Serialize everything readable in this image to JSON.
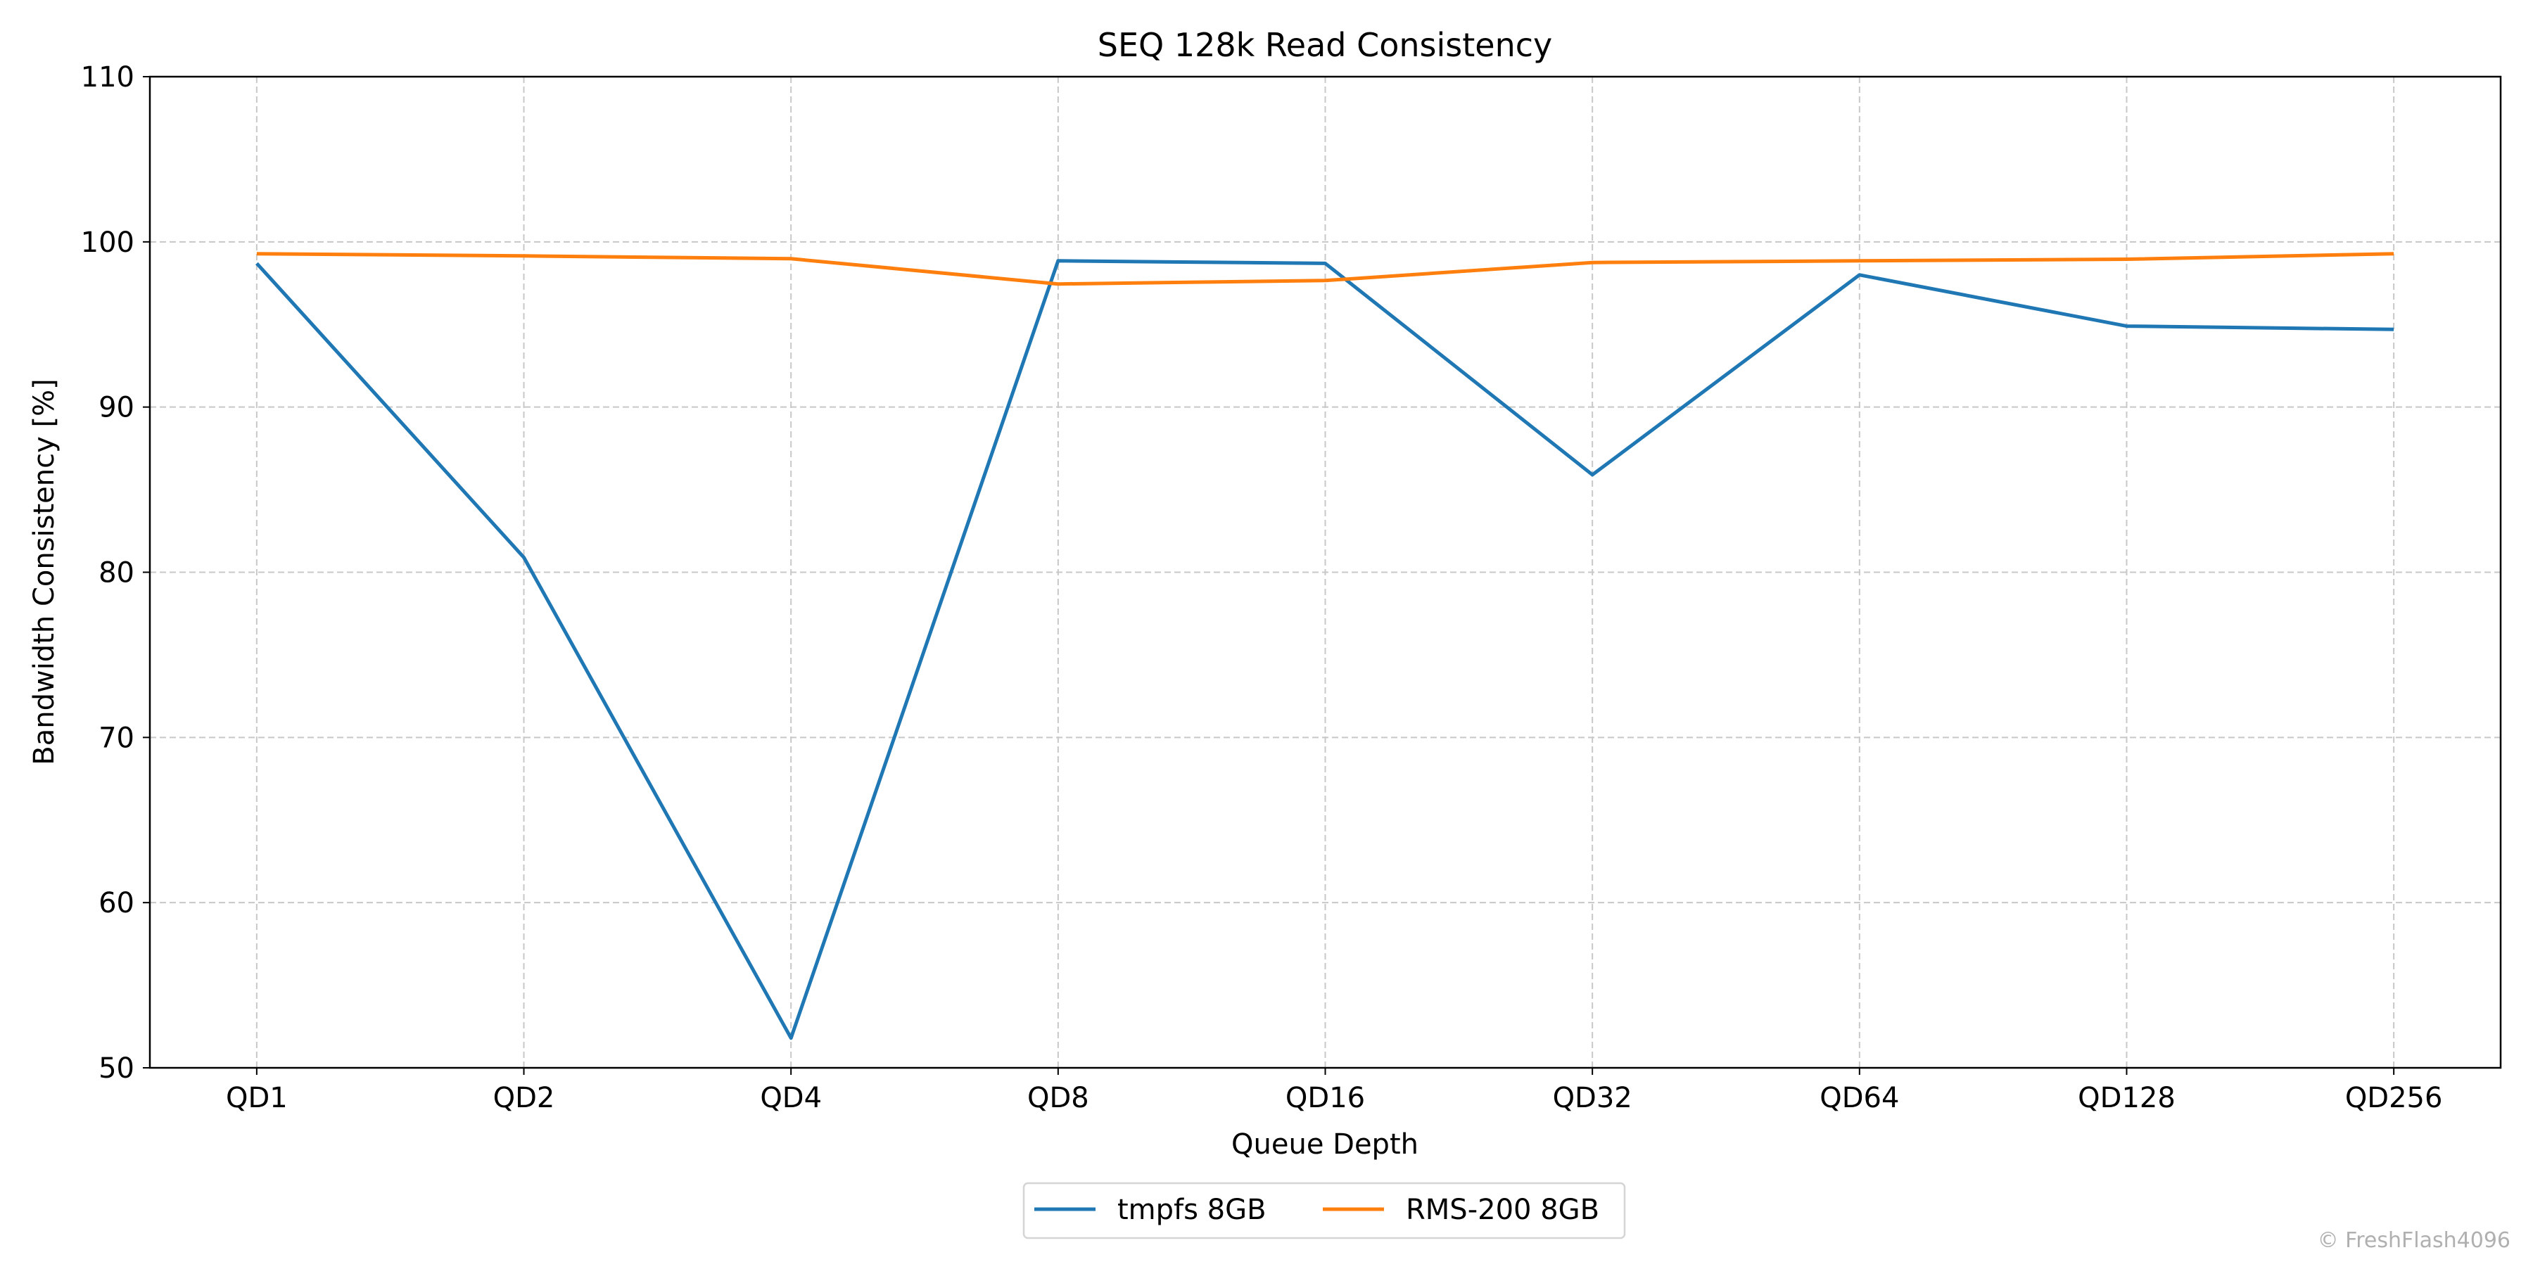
{
  "chart_data": {
    "type": "line",
    "title": "SEQ 128k Read Consistency",
    "xlabel": "Queue Depth",
    "ylabel": "Bandwidth Consistency [%]",
    "categories": [
      "QD1",
      "QD2",
      "QD4",
      "QD8",
      "QD16",
      "QD32",
      "QD64",
      "QD128",
      "QD256"
    ],
    "ylim": [
      50,
      110
    ],
    "yticks": [
      50,
      60,
      70,
      80,
      90,
      100,
      110
    ],
    "grid": true,
    "legend_position": "bottom-center",
    "series": [
      {
        "name": "tmpfs 8GB",
        "color": "#1f77b4",
        "values": [
          98.7,
          80.9,
          51.8,
          98.85,
          98.7,
          85.9,
          98.0,
          94.9,
          94.7
        ]
      },
      {
        "name": "RMS-200 8GB",
        "color": "#ff7f0e",
        "values": [
          99.28,
          99.15,
          98.98,
          97.45,
          97.66,
          98.75,
          98.85,
          98.95,
          99.28
        ]
      }
    ]
  },
  "watermark": "© FreshFlash4096"
}
